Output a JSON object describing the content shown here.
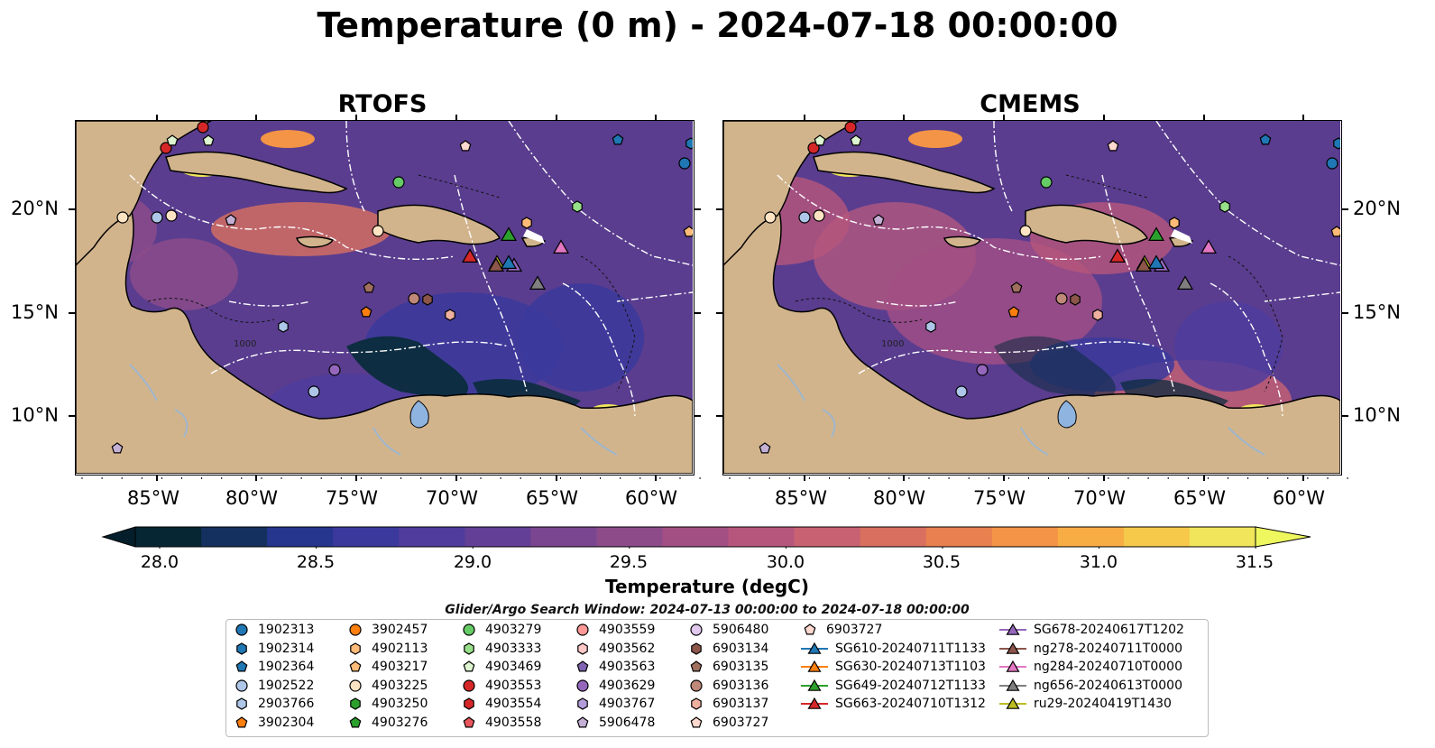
{
  "title": "Temperature (0 m) - 2024-07-18 00:00:00",
  "panels": [
    {
      "name": "RTOFS"
    },
    {
      "name": "CMEMS"
    }
  ],
  "map": {
    "lon_ticks": [
      "85°W",
      "80°W",
      "75°W",
      "70°W",
      "65°W",
      "60°W"
    ],
    "lat_ticks": [
      "20°N",
      "15°N",
      "10°N"
    ],
    "land_color": "#d2b48c",
    "ocean_colors": [
      "#0b2c3d",
      "#2e3192",
      "#5a3d8f",
      "#8a4a8c"
    ],
    "bathy_label": "1000"
  },
  "colorbar": {
    "label": "Temperature (degC)",
    "ticks": [
      "28.0",
      "28.5",
      "29.0",
      "29.5",
      "30.0",
      "30.5",
      "31.0",
      "31.5"
    ],
    "colors": [
      "#062633",
      "#14305e",
      "#26368f",
      "#3b3a9c",
      "#4f3c9c",
      "#633f96",
      "#7a4690",
      "#8d4c89",
      "#a24f84",
      "#b7567c",
      "#c86272",
      "#d9705f",
      "#e8804f",
      "#f39446",
      "#f7ad44",
      "#f6c94a",
      "#f0e55b"
    ],
    "under_color": "#041f2b",
    "over_color": "#eef85e"
  },
  "legend": {
    "window_text": "Glider/Argo Search Window: 2024-07-13 00:00:00 to 2024-07-18 00:00:00",
    "items": [
      {
        "label": "1902313",
        "marker": "circle",
        "color": "#1f77b4"
      },
      {
        "label": "1902314",
        "marker": "hexagon",
        "color": "#1f77b4"
      },
      {
        "label": "1902364",
        "marker": "pentagon",
        "color": "#1f77b4"
      },
      {
        "label": "1902522",
        "marker": "circle",
        "color": "#aec7e8"
      },
      {
        "label": "2903766",
        "marker": "hexagon",
        "color": "#aec7e8"
      },
      {
        "label": "3902304",
        "marker": "pentagon",
        "color": "#ff7f0e"
      },
      {
        "label": "3902457",
        "marker": "circle",
        "color": "#ff7f0e"
      },
      {
        "label": "4902113",
        "marker": "hexagon",
        "color": "#ffbb78"
      },
      {
        "label": "4903217",
        "marker": "pentagon",
        "color": "#ffbb78"
      },
      {
        "label": "4903225",
        "marker": "circle",
        "color": "#ffe4c4"
      },
      {
        "label": "4903250",
        "marker": "hexagon",
        "color": "#2ca02c"
      },
      {
        "label": "4903276",
        "marker": "pentagon",
        "color": "#2ca02c"
      },
      {
        "label": "4903279",
        "marker": "circle",
        "color": "#66cc66"
      },
      {
        "label": "4903333",
        "marker": "hexagon",
        "color": "#98df8a"
      },
      {
        "label": "4903469",
        "marker": "pentagon",
        "color": "#ddf5d0"
      },
      {
        "label": "4903553",
        "marker": "circle",
        "color": "#d62728"
      },
      {
        "label": "4903554",
        "marker": "hexagon",
        "color": "#d62728"
      },
      {
        "label": "4903558",
        "marker": "pentagon",
        "color": "#e8555a"
      },
      {
        "label": "4903559",
        "marker": "circle",
        "color": "#ff9896"
      },
      {
        "label": "4903562",
        "marker": "hexagon",
        "color": "#ffc8c8"
      },
      {
        "label": "4903563",
        "marker": "pentagon",
        "color": "#8064b0"
      },
      {
        "label": "4903629",
        "marker": "circle",
        "color": "#9467bd"
      },
      {
        "label": "4903767",
        "marker": "hexagon",
        "color": "#b39ddb"
      },
      {
        "label": "5906478",
        "marker": "pentagon",
        "color": "#c5b0d5"
      },
      {
        "label": "5906480",
        "marker": "circle",
        "color": "#e1c8ef"
      },
      {
        "label": "6903134",
        "marker": "hexagon",
        "color": "#8c564b"
      },
      {
        "label": "6903135",
        "marker": "pentagon",
        "color": "#a0705f"
      },
      {
        "label": "6903136",
        "marker": "circle",
        "color": "#c08878"
      },
      {
        "label": "6903137",
        "marker": "hexagon",
        "color": "#f0b0a0"
      },
      {
        "label": "6903727",
        "marker": "pentagon",
        "color": "#ffd8d0"
      },
      {
        "label": "SG610-20240711T1133",
        "marker": "triangle-line",
        "color": "#1f77b4"
      },
      {
        "label": "SG630-20240713T1103",
        "marker": "triangle-line",
        "color": "#ff7f0e"
      },
      {
        "label": "SG649-20240712T1133",
        "marker": "triangle-line",
        "color": "#2ca02c"
      },
      {
        "label": "SG663-20240710T1312",
        "marker": "triangle-line",
        "color": "#d62728"
      },
      {
        "label": "SG678-20240617T1202",
        "marker": "triangle-line",
        "color": "#9467bd"
      },
      {
        "label": "ng278-20240711T0000",
        "marker": "triangle-line",
        "color": "#8c564b"
      },
      {
        "label": "ng284-20240710T0000",
        "marker": "triangle-line",
        "color": "#e377c2"
      },
      {
        "label": "ng656-20240613T0000",
        "marker": "triangle-line",
        "color": "#7f7f7f"
      },
      {
        "label": "ru29-20240419T1430",
        "marker": "triangle-line",
        "color": "#bcbd22"
      }
    ]
  }
}
